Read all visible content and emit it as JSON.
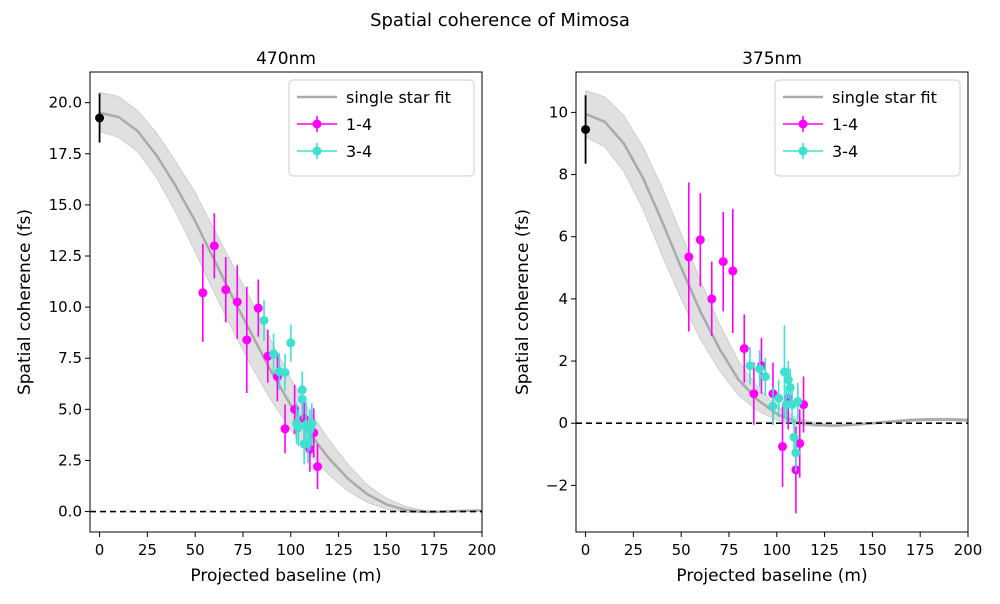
{
  "figure": {
    "suptitle": "Spatial coherence of Mimosa"
  },
  "chart_data": [
    {
      "type": "scatter",
      "title": "470nm",
      "xlabel": "Projected baseline (m)",
      "ylabel": "Spatial coherence (fs)",
      "xlim": [
        -5,
        200
      ],
      "ylim": [
        -1.0,
        21.5
      ],
      "xticks": [
        0,
        25,
        50,
        75,
        100,
        125,
        150,
        175,
        200
      ],
      "yticks": [
        0.0,
        2.5,
        5.0,
        7.5,
        10.0,
        12.5,
        15.0,
        17.5,
        20.0
      ],
      "ytick_labels": [
        "0.0",
        "2.5",
        "5.0",
        "7.5",
        "10.0",
        "12.5",
        "15.0",
        "17.5",
        "20.0"
      ],
      "grid": false,
      "legend_position": "top-right",
      "zero_line": {
        "y": 0,
        "style": "dashed",
        "color": "#000000"
      },
      "fit": {
        "name": "single star fit",
        "color": "#aaaaaa",
        "band_color": "#e0e0e0",
        "x": [
          0,
          10,
          20,
          30,
          40,
          50,
          60,
          70,
          80,
          90,
          100,
          110,
          120,
          130,
          140,
          150,
          160,
          170,
          180,
          190,
          200
        ],
        "y": [
          19.5,
          19.3,
          18.6,
          17.4,
          15.9,
          14.2,
          12.3,
          10.4,
          8.6,
          6.8,
          5.2,
          3.8,
          2.6,
          1.6,
          0.85,
          0.35,
          0.08,
          -0.02,
          0.0,
          0.03,
          0.05
        ],
        "y_low": [
          18.6,
          18.3,
          17.6,
          16.3,
          14.6,
          12.7,
          10.7,
          8.8,
          7.0,
          5.4,
          4.0,
          2.8,
          1.8,
          1.0,
          0.45,
          0.12,
          -0.03,
          -0.05,
          -0.02,
          0.0,
          0.02
        ],
        "y_high": [
          20.5,
          20.3,
          19.6,
          18.5,
          17.1,
          15.6,
          13.8,
          12.0,
          10.2,
          8.3,
          6.5,
          4.9,
          3.5,
          2.3,
          1.3,
          0.65,
          0.25,
          0.05,
          0.03,
          0.06,
          0.08
        ]
      },
      "zero_point": {
        "x": 0,
        "y": 19.25,
        "err": 1.2,
        "color": "#000000"
      },
      "series": [
        {
          "name": "1-4",
          "color": "#ff00ff",
          "points": [
            {
              "x": 54,
              "y": 10.7,
              "err": 2.4
            },
            {
              "x": 60,
              "y": 13.0,
              "err": 1.6
            },
            {
              "x": 66,
              "y": 10.85,
              "err": 1.6
            },
            {
              "x": 72,
              "y": 10.25,
              "err": 1.8
            },
            {
              "x": 77,
              "y": 8.4,
              "err": 2.6
            },
            {
              "x": 83,
              "y": 9.95,
              "err": 1.4
            },
            {
              "x": 88,
              "y": 7.6,
              "err": 1.3
            },
            {
              "x": 93,
              "y": 6.6,
              "err": 1.2
            },
            {
              "x": 97,
              "y": 4.05,
              "err": 1.2
            },
            {
              "x": 102,
              "y": 5.0,
              "err": 1.2
            },
            {
              "x": 107,
              "y": 4.55,
              "err": 1.1
            },
            {
              "x": 110,
              "y": 3.05,
              "err": 1.1
            },
            {
              "x": 112,
              "y": 3.85,
              "err": 1.2
            },
            {
              "x": 114,
              "y": 2.2,
              "err": 1.1
            }
          ]
        },
        {
          "name": "3-4",
          "color": "#40e0d0",
          "points": [
            {
              "x": 86,
              "y": 9.35,
              "err": 1.0
            },
            {
              "x": 91,
              "y": 7.7,
              "err": 1.0
            },
            {
              "x": 94,
              "y": 6.85,
              "err": 0.9
            },
            {
              "x": 97,
              "y": 6.8,
              "err": 0.9
            },
            {
              "x": 100,
              "y": 8.25,
              "err": 0.9
            },
            {
              "x": 103,
              "y": 4.3,
              "err": 1.0
            },
            {
              "x": 104,
              "y": 4.1,
              "err": 0.9
            },
            {
              "x": 106,
              "y": 5.95,
              "err": 0.9
            },
            {
              "x": 106,
              "y": 5.5,
              "err": 1.0
            },
            {
              "x": 107,
              "y": 3.3,
              "err": 1.0
            },
            {
              "x": 108,
              "y": 4.25,
              "err": 1.1
            },
            {
              "x": 109,
              "y": 3.35,
              "err": 1.0
            },
            {
              "x": 110,
              "y": 4.0,
              "err": 1.0
            },
            {
              "x": 111,
              "y": 4.3,
              "err": 1.0
            }
          ]
        }
      ]
    },
    {
      "type": "scatter",
      "title": "375nm",
      "xlabel": "Projected baseline (m)",
      "ylabel": "Spatial coherence (fs)",
      "xlim": [
        -5,
        200
      ],
      "ylim": [
        -3.5,
        11.3
      ],
      "xticks": [
        0,
        25,
        50,
        75,
        100,
        125,
        150,
        175,
        200
      ],
      "yticks": [
        -2,
        0,
        2,
        4,
        6,
        8,
        10
      ],
      "ytick_labels": [
        "−2",
        "0",
        "2",
        "4",
        "6",
        "8",
        "10"
      ],
      "grid": false,
      "legend_position": "top-right",
      "zero_line": {
        "y": 0,
        "style": "dashed",
        "color": "#000000"
      },
      "fit": {
        "name": "single star fit",
        "color": "#aaaaaa",
        "band_color": "#e0e0e0",
        "x": [
          0,
          10,
          20,
          30,
          40,
          50,
          60,
          70,
          80,
          90,
          100,
          110,
          120,
          130,
          140,
          150,
          160,
          170,
          180,
          190,
          200
        ],
        "y": [
          9.95,
          9.7,
          9.0,
          7.9,
          6.5,
          5.0,
          3.6,
          2.4,
          1.4,
          0.75,
          0.3,
          0.05,
          -0.05,
          -0.08,
          -0.05,
          0.0,
          0.05,
          0.1,
          0.12,
          0.12,
          0.1
        ],
        "y_low": [
          9.2,
          8.9,
          8.1,
          6.9,
          5.4,
          4.0,
          2.7,
          1.7,
          0.9,
          0.4,
          0.1,
          -0.05,
          -0.1,
          -0.1,
          -0.08,
          -0.03,
          0.02,
          0.06,
          0.08,
          0.08,
          0.06
        ],
        "y_high": [
          10.7,
          10.5,
          9.9,
          8.9,
          7.6,
          6.1,
          4.6,
          3.2,
          2.0,
          1.15,
          0.55,
          0.18,
          0.02,
          -0.04,
          -0.02,
          0.03,
          0.09,
          0.14,
          0.16,
          0.16,
          0.14
        ]
      },
      "zero_point": {
        "x": 0,
        "y": 9.45,
        "err": 1.1,
        "color": "#000000"
      },
      "series": [
        {
          "name": "1-4",
          "color": "#ff00ff",
          "points": [
            {
              "x": 54,
              "y": 5.35,
              "err": 2.4
            },
            {
              "x": 60,
              "y": 5.9,
              "err": 1.5
            },
            {
              "x": 66,
              "y": 4.0,
              "err": 1.2
            },
            {
              "x": 72,
              "y": 5.2,
              "err": 1.6
            },
            {
              "x": 77,
              "y": 4.9,
              "err": 2.0
            },
            {
              "x": 83,
              "y": 2.4,
              "err": 1.1
            },
            {
              "x": 88,
              "y": 0.95,
              "err": 1.0
            },
            {
              "x": 92,
              "y": 1.85,
              "err": 0.9
            },
            {
              "x": 98,
              "y": 0.95,
              "err": 1.0
            },
            {
              "x": 103,
              "y": -0.75,
              "err": 1.3
            },
            {
              "x": 106,
              "y": 0.8,
              "err": 1.0
            },
            {
              "x": 110,
              "y": -1.5,
              "err": 1.4
            },
            {
              "x": 112,
              "y": -0.65,
              "err": 1.1
            },
            {
              "x": 114,
              "y": 0.6,
              "err": 0.9
            }
          ]
        },
        {
          "name": "3-4",
          "color": "#40e0d0",
          "points": [
            {
              "x": 86,
              "y": 1.85,
              "err": 0.6
            },
            {
              "x": 91,
              "y": 1.75,
              "err": 0.6
            },
            {
              "x": 94,
              "y": 1.5,
              "err": 0.6
            },
            {
              "x": 98,
              "y": 0.55,
              "err": 0.6
            },
            {
              "x": 101,
              "y": 0.8,
              "err": 0.6
            },
            {
              "x": 104,
              "y": 1.65,
              "err": 1.5
            },
            {
              "x": 105,
              "y": 0.6,
              "err": 0.6
            },
            {
              "x": 106,
              "y": 1.4,
              "err": 0.6
            },
            {
              "x": 107,
              "y": 1.15,
              "err": 0.6
            },
            {
              "x": 108,
              "y": 0.6,
              "err": 0.6
            },
            {
              "x": 109,
              "y": -0.45,
              "err": 0.6
            },
            {
              "x": 110,
              "y": -0.95,
              "err": 0.6
            },
            {
              "x": 111,
              "y": 0.7,
              "err": 0.6
            }
          ]
        }
      ]
    }
  ]
}
